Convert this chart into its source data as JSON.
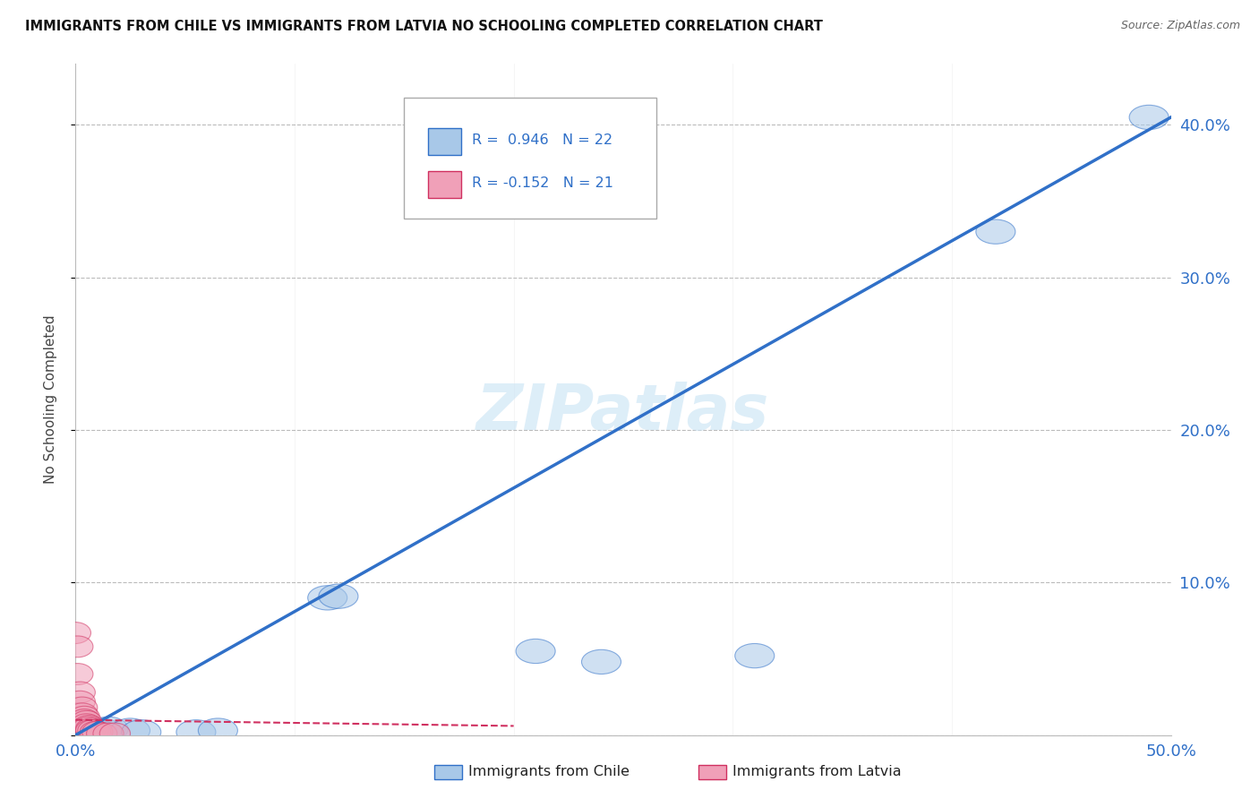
{
  "title": "IMMIGRANTS FROM CHILE VS IMMIGRANTS FROM LATVIA NO SCHOOLING COMPLETED CORRELATION CHART",
  "source": "Source: ZipAtlas.com",
  "ylabel": "No Schooling Completed",
  "watermark": "ZIPatlas",
  "legend_chile": "Immigrants from Chile",
  "legend_latvia": "Immigrants from Latvia",
  "R_chile": 0.946,
  "N_chile": 22,
  "R_latvia": -0.152,
  "N_latvia": 21,
  "xlim": [
    0.0,
    0.5
  ],
  "ylim": [
    0.0,
    0.44
  ],
  "xticks": [
    0.0,
    0.1,
    0.2,
    0.3,
    0.4,
    0.5
  ],
  "yticks": [
    0.0,
    0.1,
    0.2,
    0.3,
    0.4
  ],
  "ytick_labels_right": [
    "",
    "10.0%",
    "20.0%",
    "30.0%",
    "40.0%"
  ],
  "color_chile": "#a8c8e8",
  "color_latvia": "#f0a0b8",
  "line_chile_color": "#3070c8",
  "line_latvia_color": "#d03060",
  "background_color": "#ffffff",
  "grid_color": "#bbbbbb",
  "chile_points": [
    [
      0.002,
      0.001
    ],
    [
      0.003,
      0.002
    ],
    [
      0.004,
      0.001
    ],
    [
      0.005,
      0.002
    ],
    [
      0.006,
      0.001
    ],
    [
      0.007,
      0.003
    ],
    [
      0.008,
      0.002
    ],
    [
      0.009,
      0.001
    ],
    [
      0.01,
      0.002
    ],
    [
      0.012,
      0.003
    ],
    [
      0.015,
      0.004
    ],
    [
      0.025,
      0.003
    ],
    [
      0.03,
      0.002
    ],
    [
      0.055,
      0.002
    ],
    [
      0.065,
      0.003
    ],
    [
      0.115,
      0.09
    ],
    [
      0.12,
      0.091
    ],
    [
      0.21,
      0.055
    ],
    [
      0.24,
      0.048
    ],
    [
      0.31,
      0.052
    ],
    [
      0.42,
      0.33
    ],
    [
      0.49,
      0.405
    ]
  ],
  "latvia_points": [
    [
      0.0,
      0.067
    ],
    [
      0.001,
      0.058
    ],
    [
      0.001,
      0.04
    ],
    [
      0.002,
      0.028
    ],
    [
      0.002,
      0.022
    ],
    [
      0.003,
      0.018
    ],
    [
      0.003,
      0.014
    ],
    [
      0.004,
      0.012
    ],
    [
      0.004,
      0.01
    ],
    [
      0.005,
      0.009
    ],
    [
      0.005,
      0.007
    ],
    [
      0.006,
      0.006
    ],
    [
      0.006,
      0.005
    ],
    [
      0.007,
      0.004
    ],
    [
      0.007,
      0.003
    ],
    [
      0.008,
      0.003
    ],
    [
      0.009,
      0.002
    ],
    [
      0.01,
      0.002
    ],
    [
      0.012,
      0.001
    ],
    [
      0.015,
      0.001
    ],
    [
      0.018,
      0.001
    ]
  ],
  "chile_line_x": [
    0.0,
    0.5
  ],
  "chile_line_y": [
    0.0,
    0.405
  ],
  "latvia_line_x": [
    0.0,
    0.2
  ],
  "latvia_line_y": [
    0.01,
    0.006
  ]
}
